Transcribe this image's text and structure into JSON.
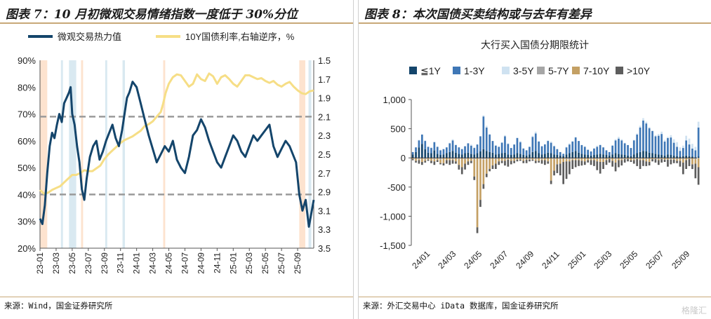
{
  "left": {
    "title": "图表 7：10 月初微观交易情绪指数一度低于 30%分位",
    "source": "来源：Wind，国金证券研究所",
    "colors": {
      "sentiment": "#14456b",
      "yield": "#f6de86",
      "shade_blue": "#d9e9f1",
      "shade_orange": "#fde3cf",
      "dashed": "#9a9a9a"
    }
  },
  "right": {
    "title": "图表 8：本次国债买卖结构或与去年有差异",
    "source": "来源：外汇交易中心 iData 数据库，国金证券研究所",
    "colors": {
      "1y": "#14456b",
      "1_3y": "#3f77b6",
      "3_5y": "#cfe2f1",
      "5_7y": "#a6a6a6",
      "7_10y": "#c4a064",
      "10y_plus": "#5d5d5d"
    }
  },
  "watermark": "格隆汇",
  "chart_data": [
    {
      "type": "line",
      "title": "10月初微观交易情绪指数一度低于30%分位",
      "legend": [
        {
          "key": "sentiment",
          "name": "微观交易热力值"
        },
        {
          "key": "yield",
          "name": "10Y国债利率,右轴逆序，%"
        }
      ],
      "x_ticks": [
        "23-01",
        "23-03",
        "23-05",
        "23-07",
        "23-09",
        "23-11",
        "24-01",
        "24-03",
        "24-05",
        "24-07",
        "24-09",
        "24-11",
        "25-01",
        "25-03",
        "25-05",
        "25-07",
        "25-09"
      ],
      "y_left_ticks": [
        "90%",
        "80%",
        "70%",
        "60%",
        "50%",
        "40%",
        "30%",
        "20%"
      ],
      "ylim_left": [
        20,
        90
      ],
      "y_right_ticks": [
        "1.5",
        "1.7",
        "1.9",
        "2.1",
        "2.3",
        "2.5",
        "2.7",
        "2.9",
        "3.1",
        "3.3",
        "3.5"
      ],
      "ylim_right_inverted": [
        1.5,
        3.5
      ],
      "reference_lines_pct": [
        69,
        40
      ],
      "x_month_range": [
        0,
        34
      ],
      "shaded_periods": [
        {
          "color": "orange",
          "start": 0.0,
          "end": 0.9
        },
        {
          "color": "blue",
          "start": 2.6,
          "end": 2.85
        },
        {
          "color": "blue",
          "start": 3.6,
          "end": 4.5
        },
        {
          "color": "orange",
          "start": 5.1,
          "end": 5.35
        },
        {
          "color": "blue",
          "start": 8.1,
          "end": 8.35
        },
        {
          "color": "blue",
          "start": 10.25,
          "end": 10.55
        },
        {
          "color": "orange",
          "start": 15.3,
          "end": 15.55
        },
        {
          "color": "orange",
          "start": 32.2,
          "end": 32.95
        },
        {
          "color": "blue",
          "start": 33.35,
          "end": 33.7
        }
      ],
      "series": [
        {
          "name": "微观交易热力值",
          "unit": "%",
          "x": [
            0,
            0.3,
            0.6,
            0.9,
            1.2,
            1.5,
            1.8,
            2.1,
            2.4,
            2.7,
            3.0,
            3.3,
            3.6,
            3.8,
            4.0,
            4.3,
            4.6,
            4.9,
            5.2,
            5.5,
            5.8,
            6.2,
            6.6,
            7.0,
            7.4,
            7.8,
            8.2,
            8.6,
            9.0,
            9.4,
            9.8,
            10.2,
            10.5,
            10.8,
            11.1,
            11.5,
            12.0,
            12.5,
            13.0,
            13.5,
            14.0,
            14.5,
            15.0,
            15.5,
            16.0,
            16.5,
            17.0,
            17.5,
            18.0,
            18.5,
            19.0,
            19.5,
            20.0,
            20.5,
            21.0,
            21.5,
            22.0,
            22.5,
            23.0,
            23.5,
            24.0,
            24.5,
            25.0,
            25.5,
            26.0,
            26.5,
            27.0,
            27.5,
            28.0,
            28.5,
            29.0,
            29.5,
            30.0,
            30.5,
            31.0,
            31.4,
            31.8,
            32.2,
            32.6,
            33.0,
            33.4,
            34.0
          ],
          "values": [
            31,
            29,
            36,
            48,
            58,
            63,
            61,
            66,
            70,
            67,
            74,
            76,
            78,
            80,
            70,
            66,
            58,
            52,
            42,
            38,
            46,
            54,
            58,
            60,
            53,
            56,
            60,
            63,
            66,
            61,
            58,
            64,
            70,
            76,
            78,
            82,
            80,
            74,
            68,
            62,
            57,
            52,
            55,
            58,
            56,
            60,
            53,
            50,
            48,
            54,
            62,
            64,
            68,
            65,
            60,
            56,
            52,
            50,
            54,
            58,
            62,
            60,
            56,
            54,
            58,
            62,
            60,
            62,
            64,
            66,
            58,
            54,
            57,
            60,
            58,
            55,
            52,
            40,
            34,
            38,
            28,
            38
          ]
        },
        {
          "name": "10Y国债利率,右轴逆序",
          "unit": "%",
          "x": [
            0,
            0.5,
            1,
            1.5,
            2,
            2.5,
            3,
            3.5,
            4,
            4.5,
            5,
            5.5,
            6,
            6.5,
            7,
            7.5,
            8,
            8.5,
            9,
            9.5,
            10,
            10.5,
            11,
            11.5,
            12,
            12.5,
            13,
            13.5,
            14,
            14.5,
            15,
            15.3,
            15.6,
            16,
            16.5,
            17,
            17.5,
            18,
            18.5,
            19,
            19.5,
            20,
            20.5,
            21,
            21.5,
            22,
            22.5,
            23,
            23.5,
            24,
            24.5,
            25,
            25.5,
            26,
            26.5,
            27,
            27.5,
            28,
            28.5,
            29,
            29.5,
            30,
            30.5,
            31,
            31.5,
            32,
            32.5,
            33,
            33.5,
            34
          ],
          "values": [
            2.88,
            2.92,
            2.91,
            2.88,
            2.86,
            2.84,
            2.8,
            2.76,
            2.72,
            2.72,
            2.7,
            2.67,
            2.68,
            2.68,
            2.65,
            2.62,
            2.55,
            2.5,
            2.46,
            2.42,
            2.38,
            2.35,
            2.33,
            2.31,
            2.28,
            2.25,
            2.2,
            2.18,
            2.15,
            2.1,
            2.05,
            1.96,
            1.85,
            1.75,
            1.68,
            1.65,
            1.66,
            1.72,
            1.78,
            1.75,
            1.65,
            1.7,
            1.72,
            1.64,
            1.67,
            1.75,
            1.68,
            1.66,
            1.7,
            1.75,
            1.78,
            1.72,
            1.66,
            1.66,
            1.68,
            1.7,
            1.69,
            1.72,
            1.74,
            1.72,
            1.76,
            1.78,
            1.75,
            1.73,
            1.78,
            1.82,
            1.85,
            1.86,
            1.83,
            1.82
          ]
        }
      ]
    },
    {
      "type": "bar",
      "stacked": true,
      "title": "大行买入国债分期限统计",
      "legend": [
        "≦1Y",
        "1-3Y",
        "3-5Y",
        "5-7Y",
        "7-10Y",
        ">10Y"
      ],
      "x_ticks": [
        "24/01",
        "24/03",
        "24/05",
        "24/07",
        "24/09",
        "24/11",
        "25/01",
        "25/03",
        "25/05",
        "25/07",
        "25/09"
      ],
      "y_ticks": [
        "1,000",
        "500",
        "0",
        "-500",
        "-1,000",
        "-1,500"
      ],
      "ylim": [
        -1500,
        1000
      ],
      "x_week_range": [
        0,
        93
      ],
      "series": [
        {
          "name": "≦1Y",
          "values": [
            60,
            100,
            180,
            240,
            150,
            90,
            80,
            130,
            70,
            50,
            60,
            80,
            100,
            120,
            90,
            70,
            60,
            80,
            90,
            70,
            60,
            80,
            110,
            150,
            120,
            100,
            90,
            60,
            70,
            80,
            90,
            60,
            50,
            60,
            80,
            70,
            50,
            40,
            60,
            100,
            120,
            80,
            60,
            70,
            90,
            80,
            60,
            50,
            40,
            30,
            60,
            80,
            100,
            120,
            90,
            70,
            60,
            50,
            40,
            50,
            60,
            70,
            60,
            50,
            40,
            60,
            80,
            70,
            60,
            50,
            40,
            30,
            60,
            80,
            100,
            120,
            110,
            90,
            80,
            70,
            60,
            50,
            40,
            60,
            50,
            40,
            30,
            20,
            30,
            40,
            30,
            20,
            10,
            20
          ]
        },
        {
          "name": "1-3Y",
          "values": [
            40,
            80,
            120,
            160,
            140,
            100,
            90,
            140,
            120,
            80,
            90,
            100,
            150,
            180,
            130,
            110,
            90,
            120,
            160,
            140,
            110,
            150,
            260,
            560,
            400,
            300,
            200,
            150,
            120,
            180,
            280,
            180,
            120,
            170,
            260,
            200,
            110,
            90,
            130,
            260,
            300,
            200,
            140,
            160,
            200,
            180,
            140,
            100,
            60,
            40,
            120,
            150,
            180,
            230,
            200,
            150,
            130,
            90,
            70,
            110,
            130,
            150,
            120,
            80,
            60,
            150,
            220,
            260,
            240,
            200,
            180,
            140,
            240,
            320,
            420,
            520,
            480,
            420,
            380,
            300,
            320,
            360,
            240,
            280,
            300,
            220,
            160,
            100,
            140,
            260,
            200,
            140,
            120,
            500
          ]
        },
        {
          "name": "3-5Y",
          "values": [
            0,
            0,
            10,
            0,
            10,
            0,
            10,
            0,
            0,
            10,
            0,
            0,
            10,
            20,
            10,
            0,
            10,
            0,
            0,
            20,
            10,
            0,
            0,
            20,
            30,
            10,
            0,
            10,
            0,
            10,
            20,
            10,
            0,
            0,
            10,
            20,
            10,
            0,
            0,
            20,
            30,
            10,
            0,
            10,
            10,
            20,
            10,
            0,
            0,
            0,
            10,
            20,
            10,
            10,
            0,
            0,
            10,
            0,
            0,
            10,
            20,
            10,
            0,
            0,
            0,
            10,
            20,
            30,
            20,
            10,
            0,
            0,
            10,
            20,
            30,
            40,
            30,
            20,
            10,
            20,
            30,
            40,
            30,
            20,
            40,
            60,
            80,
            60,
            40,
            80,
            100,
            80,
            60,
            100
          ]
        },
        {
          "name": "5-7Y",
          "values": [
            0,
            -10,
            -20,
            -10,
            -20,
            -10,
            0,
            -20,
            -10,
            -30,
            -10,
            0,
            -10,
            -20,
            -10,
            -20,
            -10,
            -20,
            0,
            -10,
            -20,
            -10,
            -20,
            -30,
            -20,
            -10,
            -10,
            -20,
            0,
            -10,
            -20,
            -10,
            -20,
            -10,
            0,
            -10,
            -20,
            -10,
            -20,
            -10,
            -20,
            -10,
            -20,
            -10,
            0,
            -10,
            -20,
            -10,
            -20,
            -10,
            -20,
            -30,
            -20,
            -10,
            -20,
            -10,
            0,
            -10,
            -20,
            -10,
            -20,
            -10,
            -20,
            -10,
            0,
            -10,
            -20,
            -10,
            -20,
            -10,
            0,
            -10,
            -20,
            -10,
            -20,
            -10,
            -20,
            -10,
            0,
            -10,
            -20,
            -10,
            0,
            -10,
            -20,
            -10,
            -20,
            -10,
            -20,
            -10,
            0,
            -10,
            -20,
            -10
          ]
        },
        {
          "name": "7-10Y",
          "values": [
            -20,
            -40,
            -20,
            -60,
            -30,
            -20,
            -50,
            -40,
            -30,
            -60,
            -80,
            -40,
            -30,
            -20,
            -50,
            -100,
            -150,
            -80,
            -60,
            -40,
            -300,
            -1180,
            -700,
            -420,
            -250,
            -180,
            -120,
            -80,
            -60,
            -40,
            -30,
            -20,
            -30,
            -40,
            -30,
            -20,
            -30,
            -20,
            -10,
            -20,
            -30,
            -40,
            -20,
            -30,
            -60,
            -380,
            -200,
            -100,
            -80,
            -60,
            -40,
            -30,
            -20,
            -30,
            -20,
            -40,
            -60,
            -30,
            -20,
            -30,
            -40,
            -60,
            -50,
            -30,
            -20,
            -40,
            -60,
            -30,
            -20,
            -10,
            -20,
            -30,
            -20,
            -10,
            -20,
            -30,
            -40,
            -60,
            -20,
            -10,
            -20,
            -10,
            -30,
            -20,
            -10,
            -20,
            -30,
            -40,
            -60,
            -30,
            -20,
            -100,
            -80,
            -150
          ]
        },
        {
          "name": ">10Y",
          "values": [
            -20,
            -30,
            -60,
            -50,
            -30,
            -20,
            -40,
            -60,
            -30,
            -20,
            -40,
            -60,
            -80,
            -60,
            -40,
            -80,
            -120,
            -100,
            -60,
            -40,
            -60,
            -100,
            -120,
            -80,
            -60,
            -40,
            -60,
            -90,
            -60,
            -40,
            -80,
            -120,
            -60,
            -40,
            -30,
            -20,
            -40,
            -60,
            -30,
            -20,
            -40,
            -30,
            -60,
            -80,
            -40,
            -60,
            -80,
            -150,
            -200,
            -380,
            -300,
            -220,
            -150,
            -120,
            -100,
            -80,
            -60,
            -40,
            -80,
            -100,
            -150,
            -200,
            -120,
            -80,
            -60,
            -100,
            -150,
            -120,
            -90,
            -60,
            -40,
            -30,
            -60,
            -120,
            -150,
            -100,
            -80,
            -60,
            -40,
            -60,
            -80,
            -60,
            -40,
            -120,
            -80,
            -60,
            -40,
            -100,
            -200,
            -150,
            -120,
            -80,
            -250,
            -300
          ]
        }
      ]
    }
  ]
}
